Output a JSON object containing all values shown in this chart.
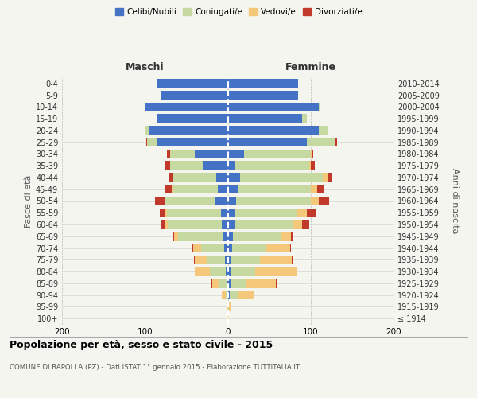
{
  "age_groups": [
    "100+",
    "95-99",
    "90-94",
    "85-89",
    "80-84",
    "75-79",
    "70-74",
    "65-69",
    "60-64",
    "55-59",
    "50-54",
    "45-49",
    "40-44",
    "35-39",
    "30-34",
    "25-29",
    "20-24",
    "15-19",
    "10-14",
    "5-9",
    "0-4"
  ],
  "birth_years": [
    "≤ 1914",
    "1915-1919",
    "1920-1924",
    "1925-1929",
    "1930-1934",
    "1935-1939",
    "1940-1944",
    "1945-1949",
    "1950-1954",
    "1955-1959",
    "1960-1964",
    "1965-1969",
    "1970-1974",
    "1975-1979",
    "1980-1984",
    "1985-1989",
    "1990-1994",
    "1995-1999",
    "2000-2004",
    "2005-2009",
    "2010-2014"
  ],
  "colors": {
    "celibe": "#4472C4",
    "coniugato": "#C5D9A0",
    "vedovo": "#F5C77A",
    "divorziato": "#C0392B"
  },
  "maschi": {
    "celibe": [
      0,
      0,
      0,
      1,
      2,
      3,
      4,
      5,
      7,
      8,
      15,
      12,
      14,
      30,
      40,
      85,
      95,
      85,
      100,
      80,
      85
    ],
    "coniugato": [
      0,
      0,
      2,
      10,
      20,
      22,
      28,
      55,
      65,
      65,
      60,
      55,
      52,
      40,
      30,
      12,
      4,
      1,
      0,
      0,
      0
    ],
    "vedovo": [
      0,
      1,
      5,
      8,
      18,
      15,
      10,
      5,
      3,
      2,
      1,
      1,
      0,
      0,
      0,
      0,
      0,
      0,
      0,
      0,
      0
    ],
    "divorziato": [
      0,
      0,
      0,
      1,
      0,
      1,
      1,
      2,
      5,
      7,
      12,
      8,
      5,
      5,
      3,
      1,
      1,
      0,
      0,
      0,
      0
    ]
  },
  "femmine": {
    "nubile": [
      0,
      0,
      2,
      3,
      3,
      4,
      5,
      6,
      8,
      8,
      10,
      12,
      15,
      8,
      20,
      95,
      110,
      90,
      110,
      85,
      85
    ],
    "coniugata": [
      0,
      1,
      10,
      20,
      30,
      35,
      42,
      58,
      70,
      75,
      90,
      88,
      100,
      90,
      80,
      35,
      10,
      5,
      2,
      0,
      0
    ],
    "vedova": [
      1,
      2,
      20,
      35,
      50,
      38,
      28,
      12,
      12,
      12,
      10,
      8,
      5,
      2,
      1,
      0,
      0,
      0,
      0,
      0,
      0
    ],
    "divorziata": [
      0,
      0,
      0,
      2,
      1,
      1,
      1,
      3,
      8,
      12,
      12,
      8,
      5,
      5,
      2,
      2,
      1,
      0,
      0,
      0,
      0
    ]
  },
  "xlim": 200,
  "title": "Popolazione per età, sesso e stato civile - 2015",
  "subtitle": "COMUNE DI RAPOLLA (PZ) - Dati ISTAT 1° gennaio 2015 - Elaborazione TUTTITALIA.IT",
  "ylabel_left": "Fasce di età",
  "ylabel_right": "Anni di nascita",
  "legend_labels": [
    "Celibi/Nubili",
    "Coniugati/e",
    "Vedovi/e",
    "Divorziati/e"
  ],
  "legend_colors": [
    "#4472C4",
    "#C5D9A0",
    "#F5C77A",
    "#C0392B"
  ],
  "maschi_label": "Maschi",
  "femmine_label": "Femmine",
  "bg_color": "#f5f5f0"
}
